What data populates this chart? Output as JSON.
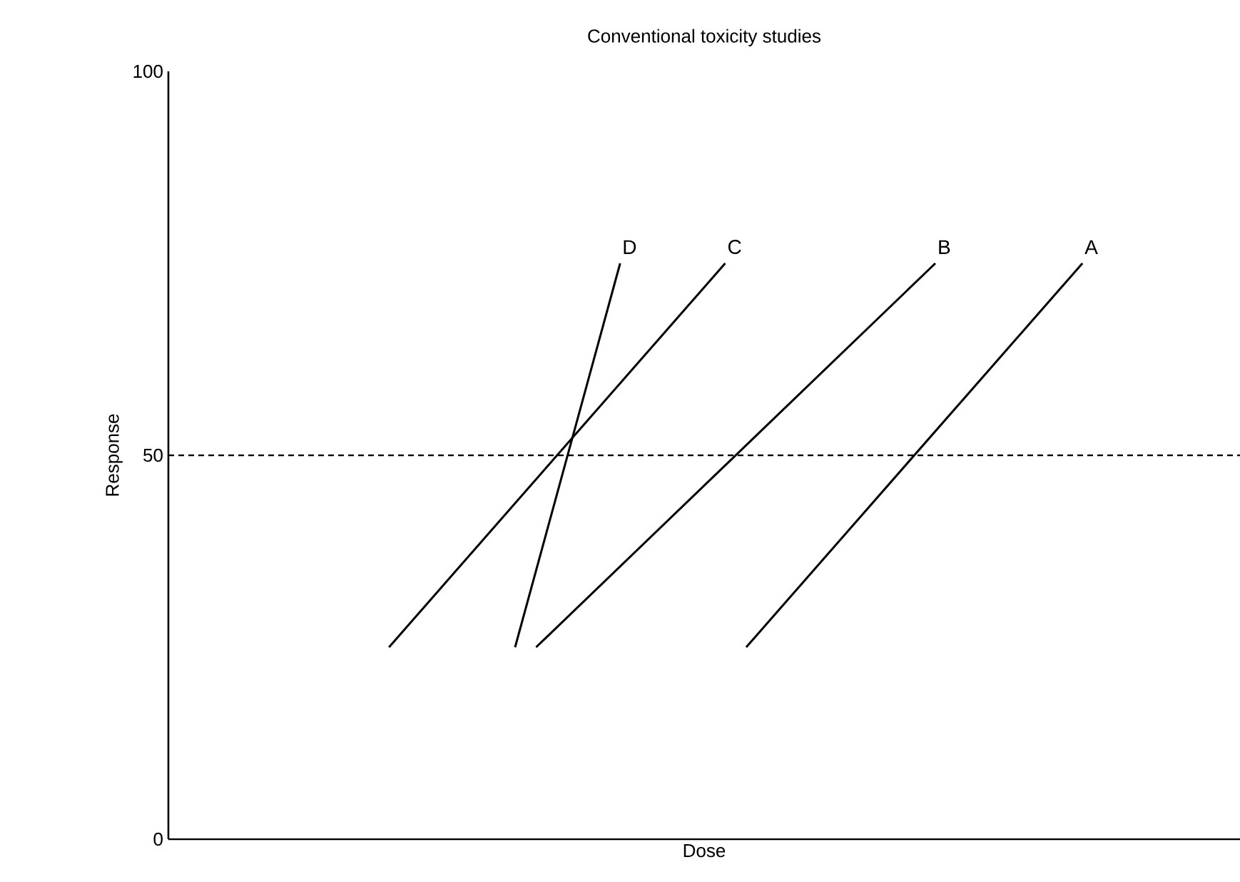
{
  "chart_data": {
    "type": "line",
    "title": "Conventional toxicity studies",
    "xlabel": "Dose",
    "ylabel": "Response",
    "categories": [
      null,
      null,
      null,
      null,
      null,
      null,
      null,
      null,
      null,
      null,
      null,
      null,
      null,
      null,
      null,
      null,
      null,
      null,
      null,
      null,
      null,
      null,
      null,
      null,
      null,
      null,
      null,
      null,
      null,
      null,
      null,
      null,
      null,
      null,
      null,
      null,
      null,
      null,
      null,
      null,
      null,
      null,
      null,
      null,
      null,
      null,
      null,
      null,
      null,
      null,
      null
    ],
    "ylim": [
      0,
      100
    ],
    "yticks": [
      0,
      50,
      100
    ],
    "tick_labels": "y",
    "series": [
      {
        "name": "A",
        "color": "#000000",
        "values": [
          null,
          null,
          null,
          null,
          null,
          null,
          null,
          null,
          null,
          null,
          null,
          null,
          null,
          null,
          null,
          null,
          null,
          null,
          null,
          null,
          null,
          null,
          null,
          null,
          null,
          null,
          null,
          25,
          null,
          null,
          null,
          null,
          null,
          null,
          null,
          null,
          null,
          null,
          null,
          null,
          null,
          null,
          null,
          75,
          null,
          null,
          null,
          null,
          null,
          null,
          null
        ]
      },
      {
        "name": "B",
        "color": "#000000",
        "values": [
          null,
          null,
          null,
          null,
          null,
          null,
          null,
          null,
          null,
          null,
          null,
          null,
          null,
          null,
          null,
          null,
          null,
          25,
          null,
          null,
          null,
          null,
          null,
          null,
          null,
          null,
          null,
          null,
          null,
          null,
          null,
          null,
          null,
          null,
          null,
          null,
          75,
          null,
          null,
          null,
          null,
          null,
          null,
          null,
          null,
          null,
          null,
          null,
          null,
          null,
          null
        ]
      },
      {
        "name": "C",
        "color": "#000000",
        "values": [
          null,
          null,
          null,
          null,
          null,
          null,
          null,
          null,
          null,
          null,
          25,
          null,
          null,
          null,
          null,
          null,
          null,
          null,
          null,
          null,
          null,
          null,
          null,
          null,
          null,
          null,
          75,
          null,
          null,
          null,
          null,
          null,
          null,
          null,
          null,
          null,
          null,
          null,
          null,
          null,
          null,
          null,
          null,
          null,
          null,
          null,
          null,
          null,
          null,
          null,
          null
        ]
      },
      {
        "name": "D",
        "color": "#000000",
        "values": [
          null,
          null,
          null,
          null,
          null,
          null,
          null,
          null,
          null,
          null,
          null,
          null,
          null,
          null,
          null,
          null,
          25,
          null,
          null,
          null,
          null,
          75,
          null,
          null,
          null,
          null,
          null,
          null,
          null,
          null,
          null,
          null,
          null,
          null,
          null,
          null,
          null,
          null,
          null,
          null,
          null,
          null,
          null,
          null,
          null,
          null,
          null,
          null,
          null,
          null,
          null
        ]
      }
    ],
    "ref_lines": [
      {
        "axis": "y",
        "value": 50,
        "line_style": "dashed"
      }
    ]
  }
}
